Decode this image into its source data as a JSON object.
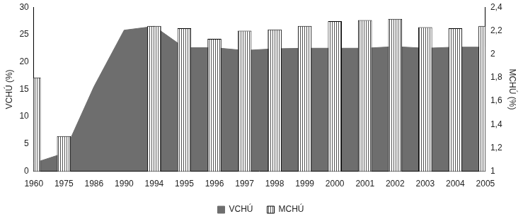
{
  "chart_data": {
    "type": "bar",
    "categories": [
      "1960",
      "1975",
      "1986",
      "1990",
      "1994",
      "1995",
      "1996",
      "1997",
      "1998",
      "1999",
      "2000",
      "2001",
      "2002",
      "2003",
      "2004",
      "2005"
    ],
    "series": [
      {
        "name": "VCHÚ",
        "type": "area",
        "color": "#6e6e6e",
        "axis": "y",
        "values": [
          1.5,
          3.3,
          15.5,
          25.8,
          26.5,
          22.6,
          22.6,
          22.1,
          22.4,
          22.5,
          22.5,
          22.5,
          22.8,
          22.5,
          22.7,
          22.7
        ]
      },
      {
        "name": "MCHÚ",
        "type": "bar",
        "color": "#ffffff",
        "axis": "y2",
        "values": [
          1.8,
          1.3,
          null,
          null,
          2.24,
          2.22,
          2.13,
          2.2,
          2.21,
          2.24,
          2.28,
          2.29,
          2.3,
          2.23,
          2.22,
          2.24
        ]
      }
    ],
    "y_label": "VCHÚ (%)",
    "y2_label": "MCHÚ (%)",
    "ylim": [
      0,
      30
    ],
    "yticks": [
      0,
      5,
      10,
      15,
      20,
      25,
      30
    ],
    "y2lim": [
      1,
      2.4
    ],
    "y2ticks": [
      1,
      {
        "value": 1.2,
        "label": "1,2"
      },
      {
        "value": 1.4,
        "label": "1,4"
      },
      {
        "value": 1.6,
        "label": "1,6"
      },
      {
        "value": 1.8,
        "label": "1,8"
      },
      2,
      {
        "value": 2.2,
        "label": "2,2"
      },
      {
        "value": 2.4,
        "label": "2,4"
      }
    ],
    "grid": false,
    "legend": "bottom"
  }
}
